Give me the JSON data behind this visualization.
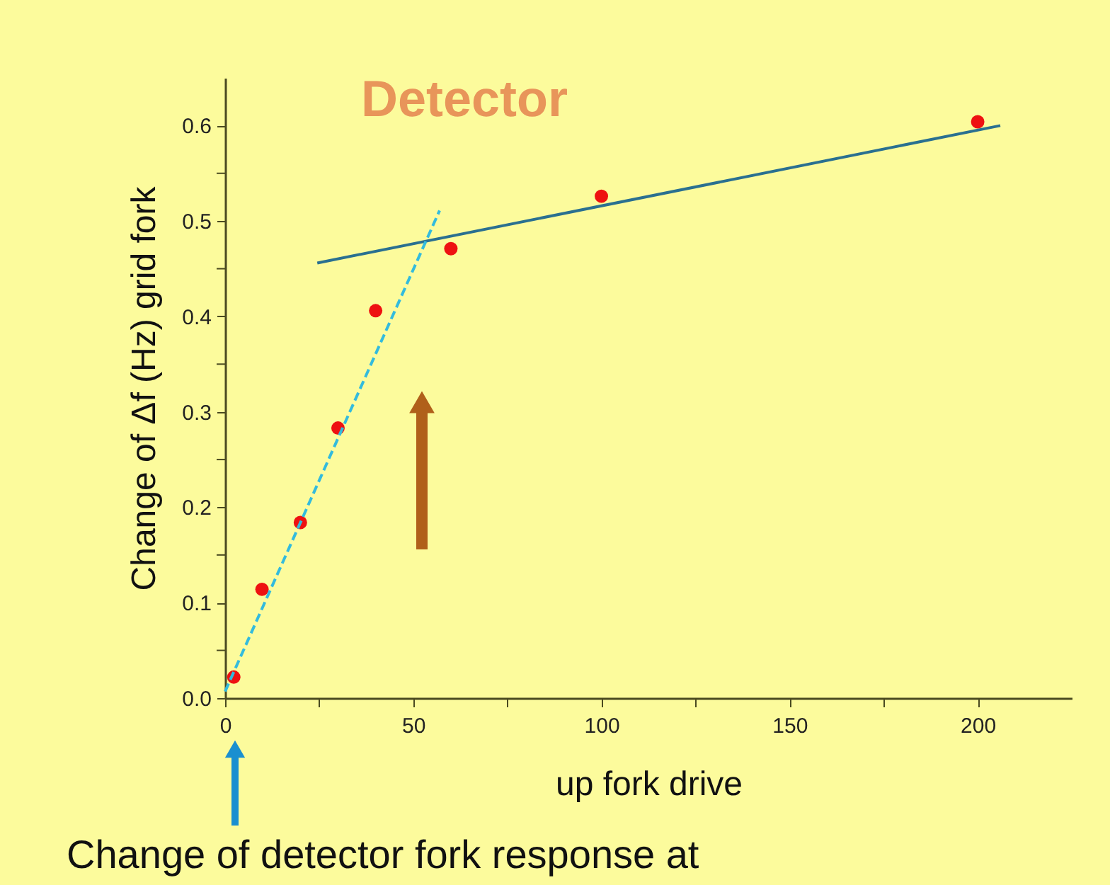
{
  "chart_data": {
    "type": "scatter",
    "title": "Detector",
    "xlabel": "up fork drive",
    "ylabel": "Change of Δf (Hz) grid fork",
    "annotations": [
      "Change of detector fork response at"
    ],
    "series": [
      {
        "color": "#ee1111",
        "marker": "circle",
        "x": [
          2.3,
          9.8,
          20,
          30,
          40,
          60,
          100,
          200
        ],
        "values": [
          0.022,
          0.114,
          0.184,
          0.283,
          0.406,
          0.471,
          0.526,
          0.604
        ]
      },
      {
        "type": "line",
        "color": "#2a7090",
        "line_style": "solid",
        "x": [
          24.5,
          206
        ],
        "values": [
          0.456,
          0.6
        ]
      },
      {
        "type": "line",
        "color": "#33bbdd",
        "line_style": "dashed",
        "x": [
          0,
          57
        ],
        "values": [
          0.007,
          0.511
        ]
      }
    ],
    "xlim": [
      0,
      225
    ],
    "ylim": [
      0,
      0.65
    ],
    "xticks": [
      0,
      {
        "value": 25,
        "label": null
      },
      50,
      {
        "value": 75,
        "label": null
      },
      100,
      {
        "value": 125,
        "label": null
      },
      150,
      {
        "value": 175,
        "label": null
      },
      200
    ],
    "yticks": [
      {
        "value": 0,
        "label": "0.0"
      },
      {
        "value": 0.05,
        "label": null
      },
      0.1,
      {
        "value": 0.15,
        "label": null
      },
      0.2,
      {
        "value": 0.25,
        "label": null
      },
      0.3,
      {
        "value": 0.35,
        "label": null
      },
      0.4,
      {
        "value": 0.45,
        "label": null
      },
      0.5,
      {
        "value": 0.55,
        "label": null
      },
      0.6
    ],
    "grid": false
  }
}
